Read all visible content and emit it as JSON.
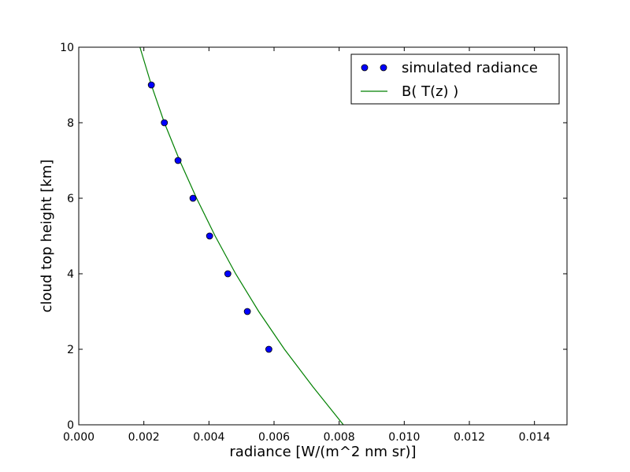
{
  "chart_data": {
    "type": "scatter",
    "title": "",
    "xlabel": "radiance [W/(m^2 nm sr)]",
    "ylabel": "cloud top height [km]",
    "xlim": [
      0,
      0.015
    ],
    "ylim": [
      0,
      10
    ],
    "x_ticks": [
      "0.000",
      "0.002",
      "0.004",
      "0.006",
      "0.008",
      "0.010",
      "0.012",
      "0.014"
    ],
    "y_ticks": [
      "0",
      "2",
      "4",
      "6",
      "8",
      "10"
    ],
    "grid": false,
    "legend_position": "top-right",
    "series": [
      {
        "name": "simulated radiance",
        "kind": "markers",
        "color": "#0000ff",
        "points": [
          {
            "x": 0.00223,
            "y": 9
          },
          {
            "x": 0.00263,
            "y": 8
          },
          {
            "x": 0.00305,
            "y": 7
          },
          {
            "x": 0.00351,
            "y": 6
          },
          {
            "x": 0.00402,
            "y": 5
          },
          {
            "x": 0.00458,
            "y": 4
          },
          {
            "x": 0.00518,
            "y": 3
          },
          {
            "x": 0.00584,
            "y": 2
          }
        ]
      },
      {
        "name": "B( T(z) )",
        "kind": "line",
        "color": "#008000",
        "points": [
          {
            "x": 0.00188,
            "y": 10
          },
          {
            "x": 0.00223,
            "y": 9
          },
          {
            "x": 0.00263,
            "y": 8
          },
          {
            "x": 0.0031,
            "y": 7
          },
          {
            "x": 0.00362,
            "y": 6
          },
          {
            "x": 0.00419,
            "y": 5
          },
          {
            "x": 0.00482,
            "y": 4
          },
          {
            "x": 0.00553,
            "y": 3
          },
          {
            "x": 0.00632,
            "y": 2
          },
          {
            "x": 0.0072,
            "y": 1
          },
          {
            "x": 0.00813,
            "y": 0
          }
        ]
      }
    ]
  }
}
